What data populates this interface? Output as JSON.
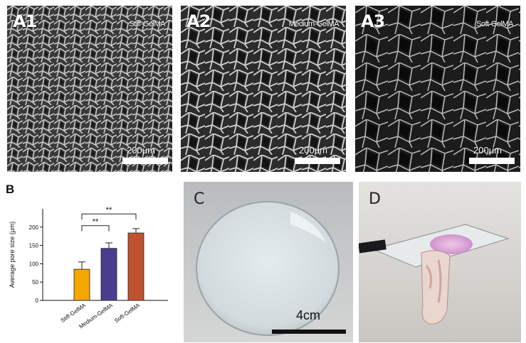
{
  "panels": {
    "a1": {
      "letter": "A1",
      "material": "Stiff-GelMA",
      "scale": "200μm"
    },
    "a2": {
      "letter": "A2",
      "material": "Medium-GelMA",
      "scale": "200μm"
    },
    "a3": {
      "letter": "A3",
      "material": "Soft-GelMA",
      "scale": "200μm"
    },
    "c": {
      "letter": "C",
      "scale": "4cm"
    },
    "d": {
      "letter": "D"
    }
  },
  "chart_data": {
    "type": "bar",
    "panel_letter": "B",
    "categories": [
      "Stiff-GelMA",
      "Medium-GelMA",
      "Soft-GelMA"
    ],
    "values": [
      85,
      142,
      184
    ],
    "errors": [
      20,
      15,
      12
    ],
    "colors": [
      "#f7a600",
      "#4a3d8f",
      "#c0532f"
    ],
    "ylabel": "Average pore size (μm)",
    "ylim": [
      0,
      250
    ],
    "yticks": [
      0,
      50,
      100,
      150,
      200
    ],
    "significance": [
      {
        "from": 0,
        "to": 1,
        "label": "**"
      },
      {
        "from": 0,
        "to": 2,
        "label": "**"
      }
    ]
  }
}
